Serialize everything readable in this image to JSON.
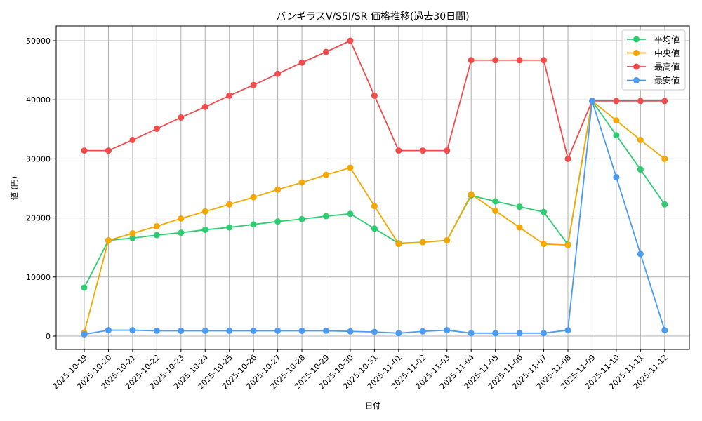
{
  "chart_data": {
    "type": "line",
    "title": "バンギラスV/S5I/SR 価格推移(過去30日間)",
    "xlabel": "日付",
    "ylabel": "値 (円)",
    "ylim": [
      -2000,
      52500
    ],
    "yticks": [
      0,
      10000,
      20000,
      30000,
      40000,
      50000
    ],
    "grid": true,
    "legend_position": "upper right",
    "categories": [
      "2025-10-19",
      "2025-10-20",
      "2025-10-21",
      "2025-10-22",
      "2025-10-23",
      "2025-10-24",
      "2025-10-25",
      "2025-10-26",
      "2025-10-27",
      "2025-10-28",
      "2025-10-29",
      "2025-10-30",
      "2025-10-31",
      "2025-11-01",
      "2025-11-02",
      "2025-11-03",
      "2025-11-04",
      "2025-11-05",
      "2025-11-06",
      "2025-11-07",
      "2025-11-08",
      "2025-11-09",
      "2025-11-10",
      "2025-11-11",
      "2025-11-12"
    ],
    "series": [
      {
        "name": "平均値",
        "color": "#2ecc71",
        "values": [
          8200,
          16200,
          16600,
          17100,
          17500,
          18000,
          18400,
          18900,
          19400,
          19800,
          20300,
          20700,
          18200,
          15700,
          15900,
          16200,
          23800,
          22800,
          21900,
          21000,
          15500,
          39800,
          34000,
          28200,
          22300
        ]
      },
      {
        "name": "中央値",
        "color": "#f5a700",
        "values": [
          600,
          16200,
          17400,
          18600,
          19900,
          21100,
          22300,
          23500,
          24800,
          26000,
          27300,
          28500,
          22000,
          15600,
          15900,
          16200,
          24000,
          21200,
          18400,
          15600,
          15400,
          39800,
          36500,
          33200,
          30000
        ]
      },
      {
        "name": "最高値",
        "color": "#f24b4b",
        "values": [
          31400,
          31400,
          33200,
          35100,
          37000,
          38800,
          40700,
          42500,
          44400,
          46300,
          48100,
          50000,
          40700,
          31400,
          31400,
          31400,
          46700,
          46700,
          46700,
          46700,
          30000,
          39800,
          39800,
          39800,
          39800
        ]
      },
      {
        "name": "最安値",
        "color": "#4b9bf5",
        "values": [
          300,
          1000,
          1000,
          900,
          900,
          900,
          900,
          900,
          900,
          900,
          900,
          800,
          700,
          500,
          800,
          1000,
          500,
          500,
          500,
          500,
          1000,
          39800,
          26900,
          13900,
          1000
        ]
      }
    ]
  }
}
